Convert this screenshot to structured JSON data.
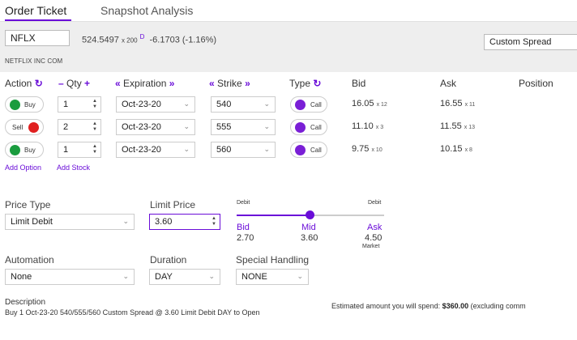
{
  "tabs": [
    {
      "label": "Order Ticket",
      "active": true
    },
    {
      "label": "Snapshot Analysis",
      "active": false
    }
  ],
  "quote": {
    "symbol": "NFLX",
    "price": "524.5497",
    "size": "x 200",
    "flag": "D",
    "change": "-6.1703 (-1.16%)",
    "company": "NETFLIX INC COM",
    "strategy": "Custom Spread"
  },
  "headers": {
    "action": "Action",
    "qty": "Qty",
    "expiration": "Expiration",
    "strike": "Strike",
    "type": "Type",
    "bid": "Bid",
    "ask": "Ask",
    "position": "Position"
  },
  "legs": [
    {
      "action": "Buy",
      "action_color": "#1a9c3e",
      "qty": "1",
      "expiration": "Oct-23-20",
      "strike": "540",
      "type": "Call",
      "bid": "16.05",
      "bid_size": "x 12",
      "ask": "16.55",
      "ask_size": "x 11"
    },
    {
      "action": "Sell",
      "action_color": "#e02020",
      "qty": "2",
      "expiration": "Oct-23-20",
      "strike": "555",
      "type": "Call",
      "bid": "11.10",
      "bid_size": "x 3",
      "ask": "11.55",
      "ask_size": "x 13"
    },
    {
      "action": "Buy",
      "action_color": "#1a9c3e",
      "qty": "1",
      "expiration": "Oct-23-20",
      "strike": "560",
      "type": "Call",
      "bid": "9.75",
      "bid_size": "x 10",
      "ask": "10.15",
      "ask_size": "x 8"
    }
  ],
  "links": {
    "add_option": "Add Option",
    "add_stock": "Add Stock"
  },
  "order": {
    "price_type_label": "Price Type",
    "price_type": "Limit Debit",
    "limit_price_label": "Limit Price",
    "limit_price": "3.60",
    "slider": {
      "left_label": "Debit",
      "right_label": "Debit",
      "position": 0.5,
      "bid_label": "Bid",
      "bid_value": "2.70",
      "mid_label": "Mid",
      "mid_value": "3.60",
      "ask_label": "Ask",
      "ask_value": "4.50",
      "ask_note": "Market"
    },
    "automation_label": "Automation",
    "automation": "None",
    "duration_label": "Duration",
    "duration": "DAY",
    "special_label": "Special Handling",
    "special": "NONE"
  },
  "description": {
    "label": "Description",
    "text": "Buy 1 Oct-23-20 540/555/560 Custom Spread @ 3.60 Limit Debit DAY to Open"
  },
  "estimate": {
    "prefix": "Estimated amount you will spend:",
    "amount": "$360.00",
    "suffix": "(excluding comm"
  },
  "colors": {
    "accent": "#6a0dd8",
    "buy": "#1a9c3e",
    "sell": "#e02020",
    "call": "#7a1fd6"
  },
  "icons": {
    "action": "refresh-icon",
    "qty_minus": "minus-icon",
    "qty_plus": "plus-icon",
    "exp_prev": "double-chevron-left-icon",
    "exp_next": "double-chevron-right-icon",
    "type": "refresh-icon"
  }
}
